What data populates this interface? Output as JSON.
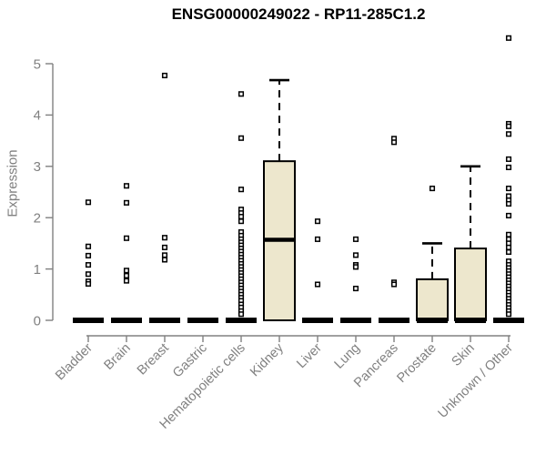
{
  "chart_data": {
    "type": "boxplot",
    "title": "ENSG00000249022 - RP11-285C1.2",
    "ylabel": "Expression",
    "xlabel": "",
    "ylim": [
      0,
      5.5
    ],
    "yticks": [
      0,
      1,
      2,
      3,
      4,
      5
    ],
    "grid": false,
    "legend": null,
    "colors": {
      "box_fill": "#EDE7CD",
      "box_stroke": "#000000",
      "axis": "#808080",
      "point": "#000000",
      "title": "#000000"
    },
    "categories": [
      {
        "name": "Bladder",
        "zero_bar": true,
        "box": null,
        "points": [
          2.3,
          1.44,
          1.26,
          1.08,
          0.9,
          0.76,
          0.71
        ]
      },
      {
        "name": "Brain",
        "zero_bar": true,
        "box": null,
        "points": [
          2.62,
          2.29,
          1.6,
          0.97,
          0.87,
          0.77
        ]
      },
      {
        "name": "Breast",
        "zero_bar": true,
        "box": null,
        "points": [
          4.77,
          1.61,
          1.42,
          1.27,
          1.18
        ]
      },
      {
        "name": "Gastric",
        "zero_bar": true,
        "box": null,
        "points": []
      },
      {
        "name": "Hematopoietic cells",
        "zero_bar": true,
        "box": null,
        "points": [
          4.41,
          3.55,
          2.55,
          2.16,
          2.09,
          2.02,
          1.93,
          1.72,
          1.65,
          1.58,
          1.52,
          1.46,
          1.4,
          1.34,
          1.28,
          1.22,
          1.16,
          1.1,
          1.04,
          0.98,
          0.92,
          0.86,
          0.8,
          0.74,
          0.68,
          0.62,
          0.56,
          0.5,
          0.44,
          0.38,
          0.31,
          0.25,
          0.18,
          0.12
        ]
      },
      {
        "name": "Kidney",
        "zero_bar": false,
        "box": {
          "q1": 0,
          "median": 1.57,
          "q3": 3.1,
          "whisker_high": 4.68
        },
        "points": []
      },
      {
        "name": "Liver",
        "zero_bar": true,
        "box": null,
        "points": [
          1.93,
          1.58,
          0.7
        ]
      },
      {
        "name": "Lung",
        "zero_bar": true,
        "box": null,
        "points": [
          1.58,
          1.27,
          1.08,
          1.04,
          0.62
        ]
      },
      {
        "name": "Pancreas",
        "zero_bar": true,
        "box": null,
        "points": [
          3.54,
          3.47,
          0.74,
          0.7
        ]
      },
      {
        "name": "Prostate",
        "zero_bar": true,
        "box": {
          "q1": 0,
          "median": 0,
          "q3": 0.8,
          "whisker_high": 1.5
        },
        "points": [
          2.57
        ]
      },
      {
        "name": "Skin",
        "zero_bar": true,
        "box": {
          "q1": 0,
          "median": 0,
          "q3": 1.4,
          "whisker_high": 3.0
        },
        "points": []
      },
      {
        "name": "Unknown / Other",
        "zero_bar": true,
        "box": null,
        "points": [
          5.5,
          3.83,
          3.78,
          3.63,
          3.14,
          2.98,
          2.57,
          2.42,
          2.34,
          2.27,
          2.04,
          1.67,
          1.58,
          1.5,
          1.42,
          1.33,
          1.15,
          1.08,
          1.02,
          0.96,
          0.9,
          0.84,
          0.78,
          0.72,
          0.66,
          0.6,
          0.54,
          0.48,
          0.42,
          0.36,
          0.3,
          0.24,
          0.18,
          0.12
        ]
      }
    ]
  }
}
